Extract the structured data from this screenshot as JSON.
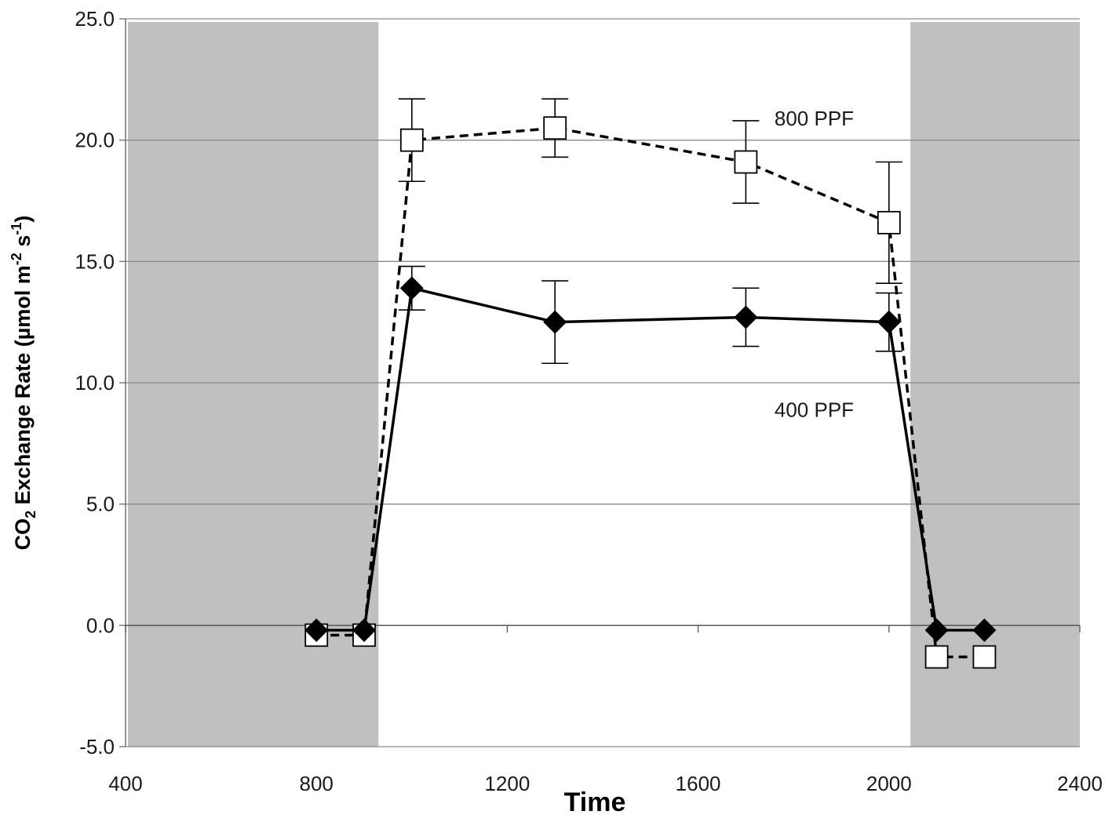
{
  "chart_data": {
    "type": "line",
    "xlabel": "Time",
    "ylabel_parts": [
      "CO",
      "2",
      " Exchange Rate (µmol m",
      "-2",
      " s",
      "-1",
      ")"
    ],
    "xlim": [
      400,
      2400
    ],
    "ylim": [
      -5,
      25
    ],
    "xticks": [
      "400",
      "800",
      "1200",
      "1600",
      "2000",
      "2400"
    ],
    "yticks": [
      "-5.0",
      "0.0",
      "5.0",
      "10.0",
      "15.0",
      "20.0",
      "25.0"
    ],
    "grid": "horizontal",
    "dark_periods": [
      [
        400,
        930
      ],
      [
        2040,
        2400
      ]
    ],
    "annotations": [
      {
        "text": "800 PPF",
        "x": 1760,
        "y": 20.6
      },
      {
        "text": "400 PPF",
        "x": 1760,
        "y": 8.6
      }
    ],
    "series": [
      {
        "marker": "open-square",
        "line": "dashed",
        "color": "#000000",
        "x": [
          800,
          900,
          1000,
          1300,
          1700,
          2000,
          2100,
          2200
        ],
        "y": [
          -0.4,
          -0.4,
          20.0,
          20.5,
          19.1,
          16.6,
          -1.3,
          -1.3
        ],
        "err": [
          0,
          0,
          1.7,
          1.2,
          1.7,
          2.5,
          0,
          0
        ]
      },
      {
        "marker": "filled-diamond",
        "line": "solid",
        "color": "#000000",
        "x": [
          800,
          900,
          1000,
          1300,
          1700,
          2000,
          2100,
          2200
        ],
        "y": [
          -0.2,
          -0.2,
          13.9,
          12.5,
          12.7,
          12.5,
          -0.2,
          -0.2
        ],
        "err": [
          0,
          0,
          0.9,
          1.7,
          1.2,
          1.2,
          0,
          0
        ]
      }
    ],
    "colors": {
      "shade": "#c0c0c0",
      "grid": "#8a8a8a",
      "axis": "#6e6e6e"
    }
  }
}
